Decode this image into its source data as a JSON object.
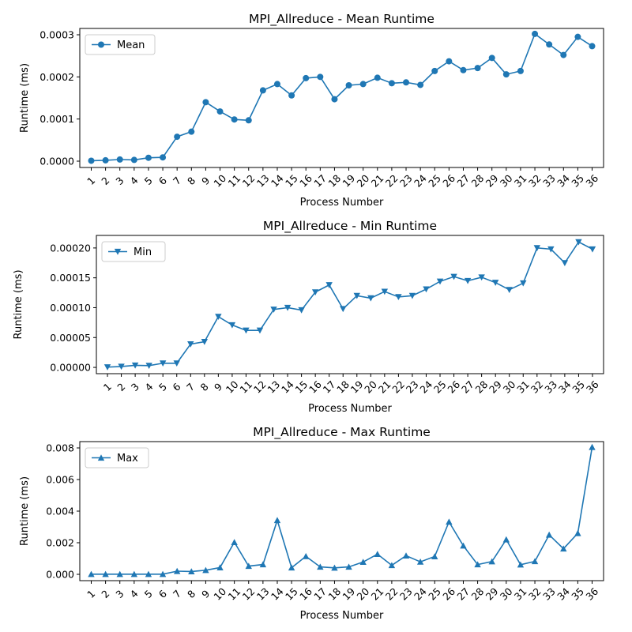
{
  "chart_data": [
    {
      "type": "line",
      "title": "MPI_Allreduce - Mean Runtime",
      "xlabel": "Process Number",
      "ylabel": "Runtime (ms)",
      "categories": [
        "1",
        "2",
        "3",
        "4",
        "5",
        "6",
        "7",
        "8",
        "9",
        "10",
        "11",
        "12",
        "13",
        "14",
        "15",
        "16",
        "17",
        "18",
        "19",
        "20",
        "21",
        "22",
        "23",
        "24",
        "25",
        "26",
        "27",
        "28",
        "29",
        "30",
        "31",
        "32",
        "33",
        "34",
        "35",
        "36"
      ],
      "ylim": [
        -1.5e-05,
        0.000315
      ],
      "yticks": [
        0,
        0.0001,
        0.0002,
        0.0003
      ],
      "ytick_labels": [
        "0.0000",
        "0.0001",
        "0.0002",
        "0.0003"
      ],
      "series": [
        {
          "name": "Mean",
          "marker": "circle",
          "color": "#1f77b4",
          "values": [
            1e-06,
            2e-06,
            4e-06,
            3e-06,
            8e-06,
            9e-06,
            5.8e-05,
            7e-05,
            0.00014,
            0.000118,
            9.9e-05,
            9.7e-05,
            0.000168,
            0.000183,
            0.000156,
            0.000197,
            0.0002,
            0.000147,
            0.00018,
            0.000183,
            0.000198,
            0.000185,
            0.000187,
            0.000181,
            0.000214,
            0.000237,
            0.000216,
            0.000221,
            0.000245,
            0.000206,
            0.000214,
            0.000302,
            0.000277,
            0.000252,
            0.000295,
            0.000273
          ]
        }
      ],
      "legend": "upper-left",
      "grid": false
    },
    {
      "type": "line",
      "title": "MPI_Allreduce - Min Runtime",
      "xlabel": "Process Number",
      "ylabel": "Runtime (ms)",
      "categories": [
        "1",
        "2",
        "3",
        "4",
        "5",
        "6",
        "7",
        "8",
        "9",
        "10",
        "11",
        "12",
        "13",
        "14",
        "15",
        "16",
        "17",
        "18",
        "19",
        "20",
        "21",
        "22",
        "23",
        "24",
        "25",
        "26",
        "27",
        "28",
        "29",
        "30",
        "31",
        "32",
        "33",
        "34",
        "35",
        "36"
      ],
      "ylim": [
        -1.05e-05,
        0.000221
      ],
      "yticks": [
        0,
        5e-05,
        0.0001,
        0.00015,
        0.0002
      ],
      "ytick_labels": [
        "0.00000",
        "0.00005",
        "0.00010",
        "0.00015",
        "0.00020"
      ],
      "series": [
        {
          "name": "Min",
          "marker": "triangle-down",
          "color": "#1f77b4",
          "values": [
            5e-07,
            1.5e-06,
            3.5e-06,
            3e-06,
            7e-06,
            7e-06,
            3.9e-05,
            4.3e-05,
            8.5e-05,
            7.1e-05,
            6.2e-05,
            6.2e-05,
            9.7e-05,
            0.0001,
            9.6e-05,
            0.000126,
            0.000138,
            9.8e-05,
            0.00012,
            0.000116,
            0.000127,
            0.000118,
            0.00012,
            0.000131,
            0.000144,
            0.000152,
            0.000145,
            0.000151,
            0.000142,
            0.00013,
            0.000141,
            0.0002,
            0.000198,
            0.000175,
            0.00021,
            0.000198
          ]
        }
      ],
      "legend": "upper-left",
      "grid": false
    },
    {
      "type": "line",
      "title": "MPI_Allreduce - Max Runtime",
      "xlabel": "Process Number",
      "ylabel": "Runtime (ms)",
      "categories": [
        "1",
        "2",
        "3",
        "4",
        "5",
        "6",
        "7",
        "8",
        "9",
        "10",
        "11",
        "12",
        "13",
        "14",
        "15",
        "16",
        "17",
        "18",
        "19",
        "20",
        "21",
        "22",
        "23",
        "24",
        "25",
        "26",
        "27",
        "28",
        "29",
        "30",
        "31",
        "32",
        "33",
        "34",
        "35",
        "36"
      ],
      "ylim": [
        -0.0004,
        0.0084
      ],
      "yticks": [
        0,
        0.002,
        0.004,
        0.006,
        0.008
      ],
      "ytick_labels": [
        "0.000",
        "0.002",
        "0.004",
        "0.006",
        "0.008"
      ],
      "series": [
        {
          "name": "Max",
          "marker": "triangle-up",
          "color": "#1f77b4",
          "values": [
            1e-05,
            1e-05,
            1e-05,
            1e-05,
            1e-05,
            1e-05,
            0.0002,
            0.00018,
            0.00026,
            0.00043,
            0.00203,
            0.00052,
            0.00062,
            0.00342,
            0.00042,
            0.00114,
            0.00047,
            0.00041,
            0.00047,
            0.00078,
            0.00128,
            0.00057,
            0.00118,
            0.00079,
            0.00113,
            0.00332,
            0.00181,
            0.00062,
            0.00081,
            0.0022,
            0.00061,
            0.00082,
            0.0025,
            0.00162,
            0.0026,
            0.00805
          ]
        }
      ],
      "legend": "upper-left",
      "grid": false
    }
  ]
}
